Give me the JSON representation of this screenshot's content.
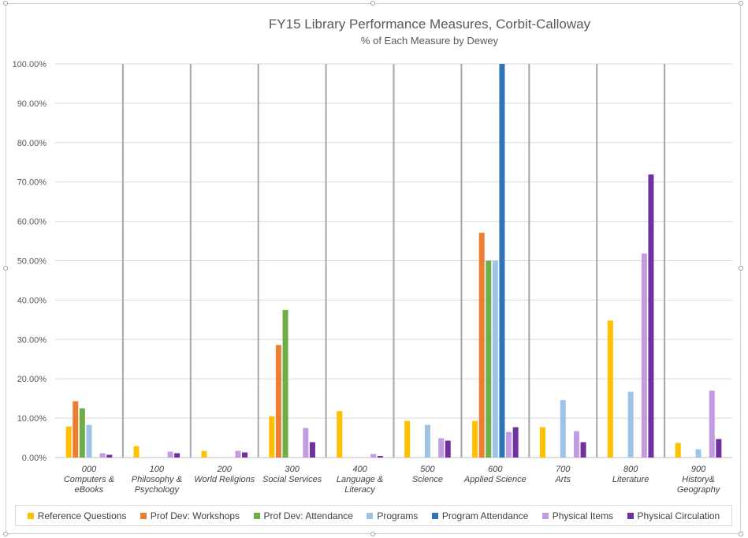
{
  "chart_data": {
    "type": "bar",
    "title": "FY15 Library Performance Measures, Corbit-Calloway",
    "subtitle": "% of Each Measure by Dewey",
    "ylim": [
      0,
      100
    ],
    "yticks": [
      "0.00%",
      "10.00%",
      "20.00%",
      "30.00%",
      "40.00%",
      "50.00%",
      "60.00%",
      "70.00%",
      "80.00%",
      "90.00%",
      "100.00%"
    ],
    "categories": [
      [
        "000",
        "Computers &",
        "eBooks"
      ],
      [
        "100",
        "Philosophy &",
        "Psychology"
      ],
      [
        "200",
        "World Religions"
      ],
      [
        "300",
        "Social Services"
      ],
      [
        "400",
        "Language &",
        "Literacy"
      ],
      [
        "500",
        "Science"
      ],
      [
        "600",
        "Applied Science"
      ],
      [
        "700",
        "Arts"
      ],
      [
        "800",
        "Literature"
      ],
      [
        "900",
        "History&",
        "Geography"
      ]
    ],
    "series": [
      {
        "name": "Reference Questions",
        "color": "#FFC000",
        "values": [
          7.9,
          2.9,
          1.7,
          10.5,
          11.8,
          9.3,
          9.3,
          7.7,
          34.8,
          3.7
        ]
      },
      {
        "name": "Prof Dev: Workshops",
        "color": "#ED7D31",
        "values": [
          14.3,
          0,
          0,
          28.6,
          0,
          0,
          57.1,
          0,
          0,
          0
        ]
      },
      {
        "name": "Prof Dev: Attendance",
        "color": "#70AD47",
        "values": [
          12.5,
          0,
          0,
          37.5,
          0,
          0,
          50.0,
          0,
          0,
          0
        ]
      },
      {
        "name": "Programs",
        "color": "#9DC3E6",
        "values": [
          8.3,
          0,
          0,
          0,
          0,
          8.3,
          50.0,
          14.6,
          16.7,
          2.1
        ]
      },
      {
        "name": "Program Attendance",
        "color": "#2E75B6",
        "values": [
          0,
          0,
          0,
          0,
          0,
          0,
          100,
          0,
          0,
          0
        ]
      },
      {
        "name": "Physical Items",
        "color": "#C39BE0",
        "values": [
          1.1,
          1.5,
          1.7,
          7.5,
          0.9,
          4.9,
          6.5,
          6.7,
          51.8,
          17.0
        ]
      },
      {
        "name": "Physical Circulation",
        "color": "#7030A0",
        "values": [
          0.7,
          1.1,
          1.3,
          3.9,
          0.4,
          4.3,
          7.7,
          3.9,
          71.9,
          4.7
        ]
      }
    ],
    "legend_position": "bottom"
  }
}
